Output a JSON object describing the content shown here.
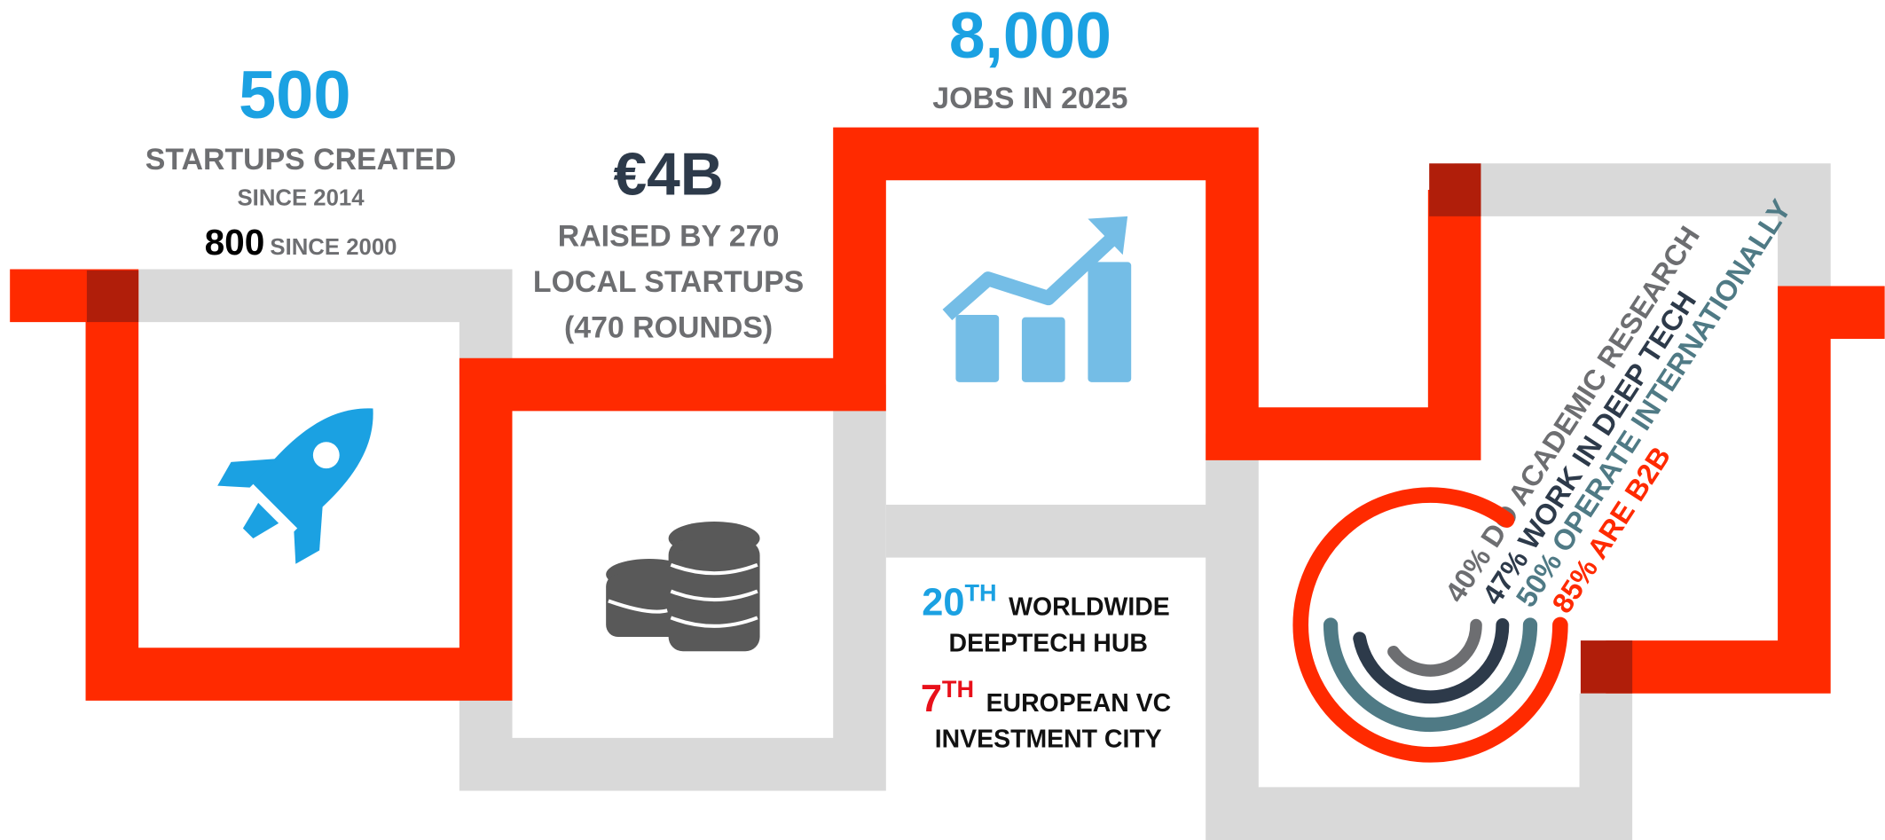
{
  "startups": {
    "value": "500",
    "label": "STARTUPS CREATED",
    "since": "SINCE 2014",
    "extra_value": "800",
    "extra_label": "SINCE 2000"
  },
  "funding": {
    "value": "€4B",
    "lines": [
      "RAISED BY 270",
      "LOCAL STARTUPS",
      "(470 ROUNDS)"
    ]
  },
  "jobs": {
    "value": "8,000",
    "label": "JOBS IN 2025"
  },
  "rankings": [
    {
      "rank": "20",
      "suffix": "TH",
      "lines": [
        "WORLDWIDE",
        "DEEPTECH HUB"
      ],
      "color": "#1ba1e2"
    },
    {
      "rank": "7",
      "suffix": "TH",
      "lines": [
        "EUROPEAN VC",
        "INVESTMENT CITY"
      ],
      "color": "#e8101a"
    }
  ],
  "profile": [
    {
      "value": 40,
      "label": "40% DO ACADEMIC RESEARCH",
      "color": "#6d6e71"
    },
    {
      "value": 47,
      "label": "47% WORK IN DEEP TECH",
      "color": "#2d3a4a"
    },
    {
      "value": 50,
      "label": "50% OPERATE INTERNATIONALLY",
      "color": "#4f7a85"
    },
    {
      "value": 85,
      "label": "85% ARE B2B",
      "color": "#ff2a00"
    }
  ]
}
